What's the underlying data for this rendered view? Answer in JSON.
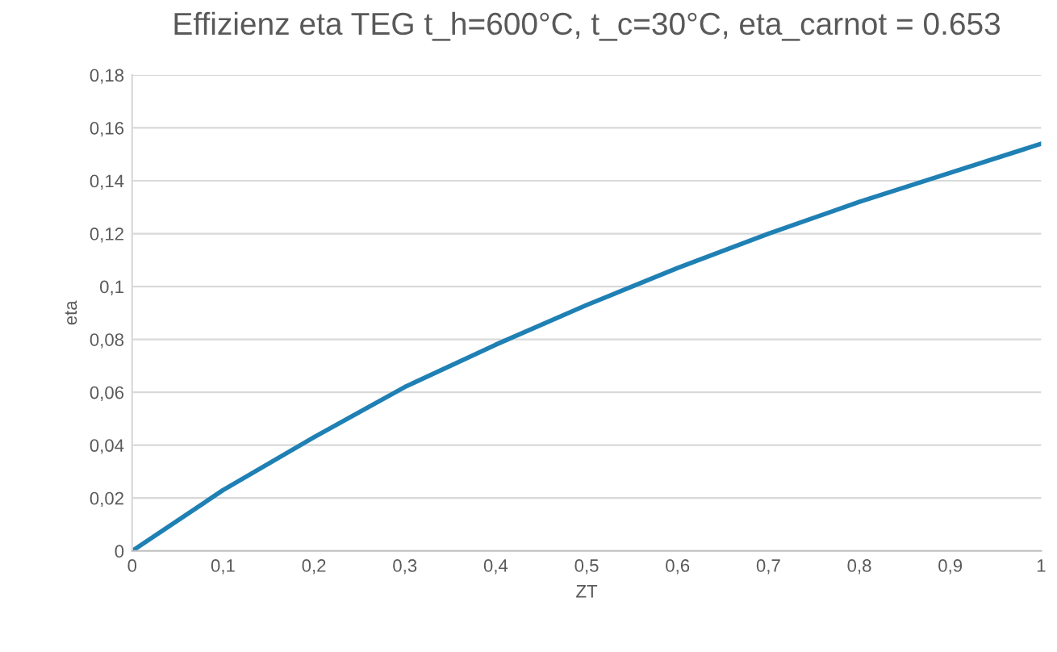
{
  "chart_data": {
    "type": "line",
    "title": "Effizienz eta TEG t_h=600°C, t_c=30°C, eta_carnot = 0.653",
    "xlabel": "ZT",
    "ylabel": "eta",
    "x": [
      0,
      0.1,
      0.2,
      0.3,
      0.4,
      0.5,
      0.6,
      0.7,
      0.8,
      0.9,
      1.0
    ],
    "series": [
      {
        "color": "#1f80b4",
        "values": [
          0,
          0.023,
          0.043,
          0.062,
          0.078,
          0.093,
          0.107,
          0.12,
          0.132,
          0.143,
          0.154
        ]
      }
    ],
    "xlim": [
      0,
      1
    ],
    "xticks": [
      0,
      {
        "value": 0.1,
        "label": "0,1"
      },
      {
        "value": 0.2,
        "label": "0,2"
      },
      {
        "value": 0.3,
        "label": "0,3"
      },
      {
        "value": 0.4,
        "label": "0,4"
      },
      {
        "value": 0.5,
        "label": "0,5"
      },
      {
        "value": 0.6,
        "label": "0,6"
      },
      {
        "value": 0.7,
        "label": "0,7"
      },
      {
        "value": 0.8,
        "label": "0,8"
      },
      {
        "value": 0.9,
        "label": "0,9"
      },
      1
    ],
    "ylim": [
      0,
      0.18
    ],
    "yticks": [
      0,
      {
        "value": 0.02,
        "label": "0,02"
      },
      {
        "value": 0.04,
        "label": "0,04"
      },
      {
        "value": 0.06,
        "label": "0,06"
      },
      {
        "value": 0.08,
        "label": "0,08"
      },
      {
        "value": 0.1,
        "label": "0,1"
      },
      {
        "value": 0.12,
        "label": "0,12"
      },
      {
        "value": 0.14,
        "label": "0,14"
      },
      {
        "value": 0.16,
        "label": "0,16"
      },
      {
        "value": 0.18,
        "label": "0,18"
      }
    ],
    "grid": "y",
    "marker": "none",
    "line_style": "solid",
    "legend": false
  }
}
